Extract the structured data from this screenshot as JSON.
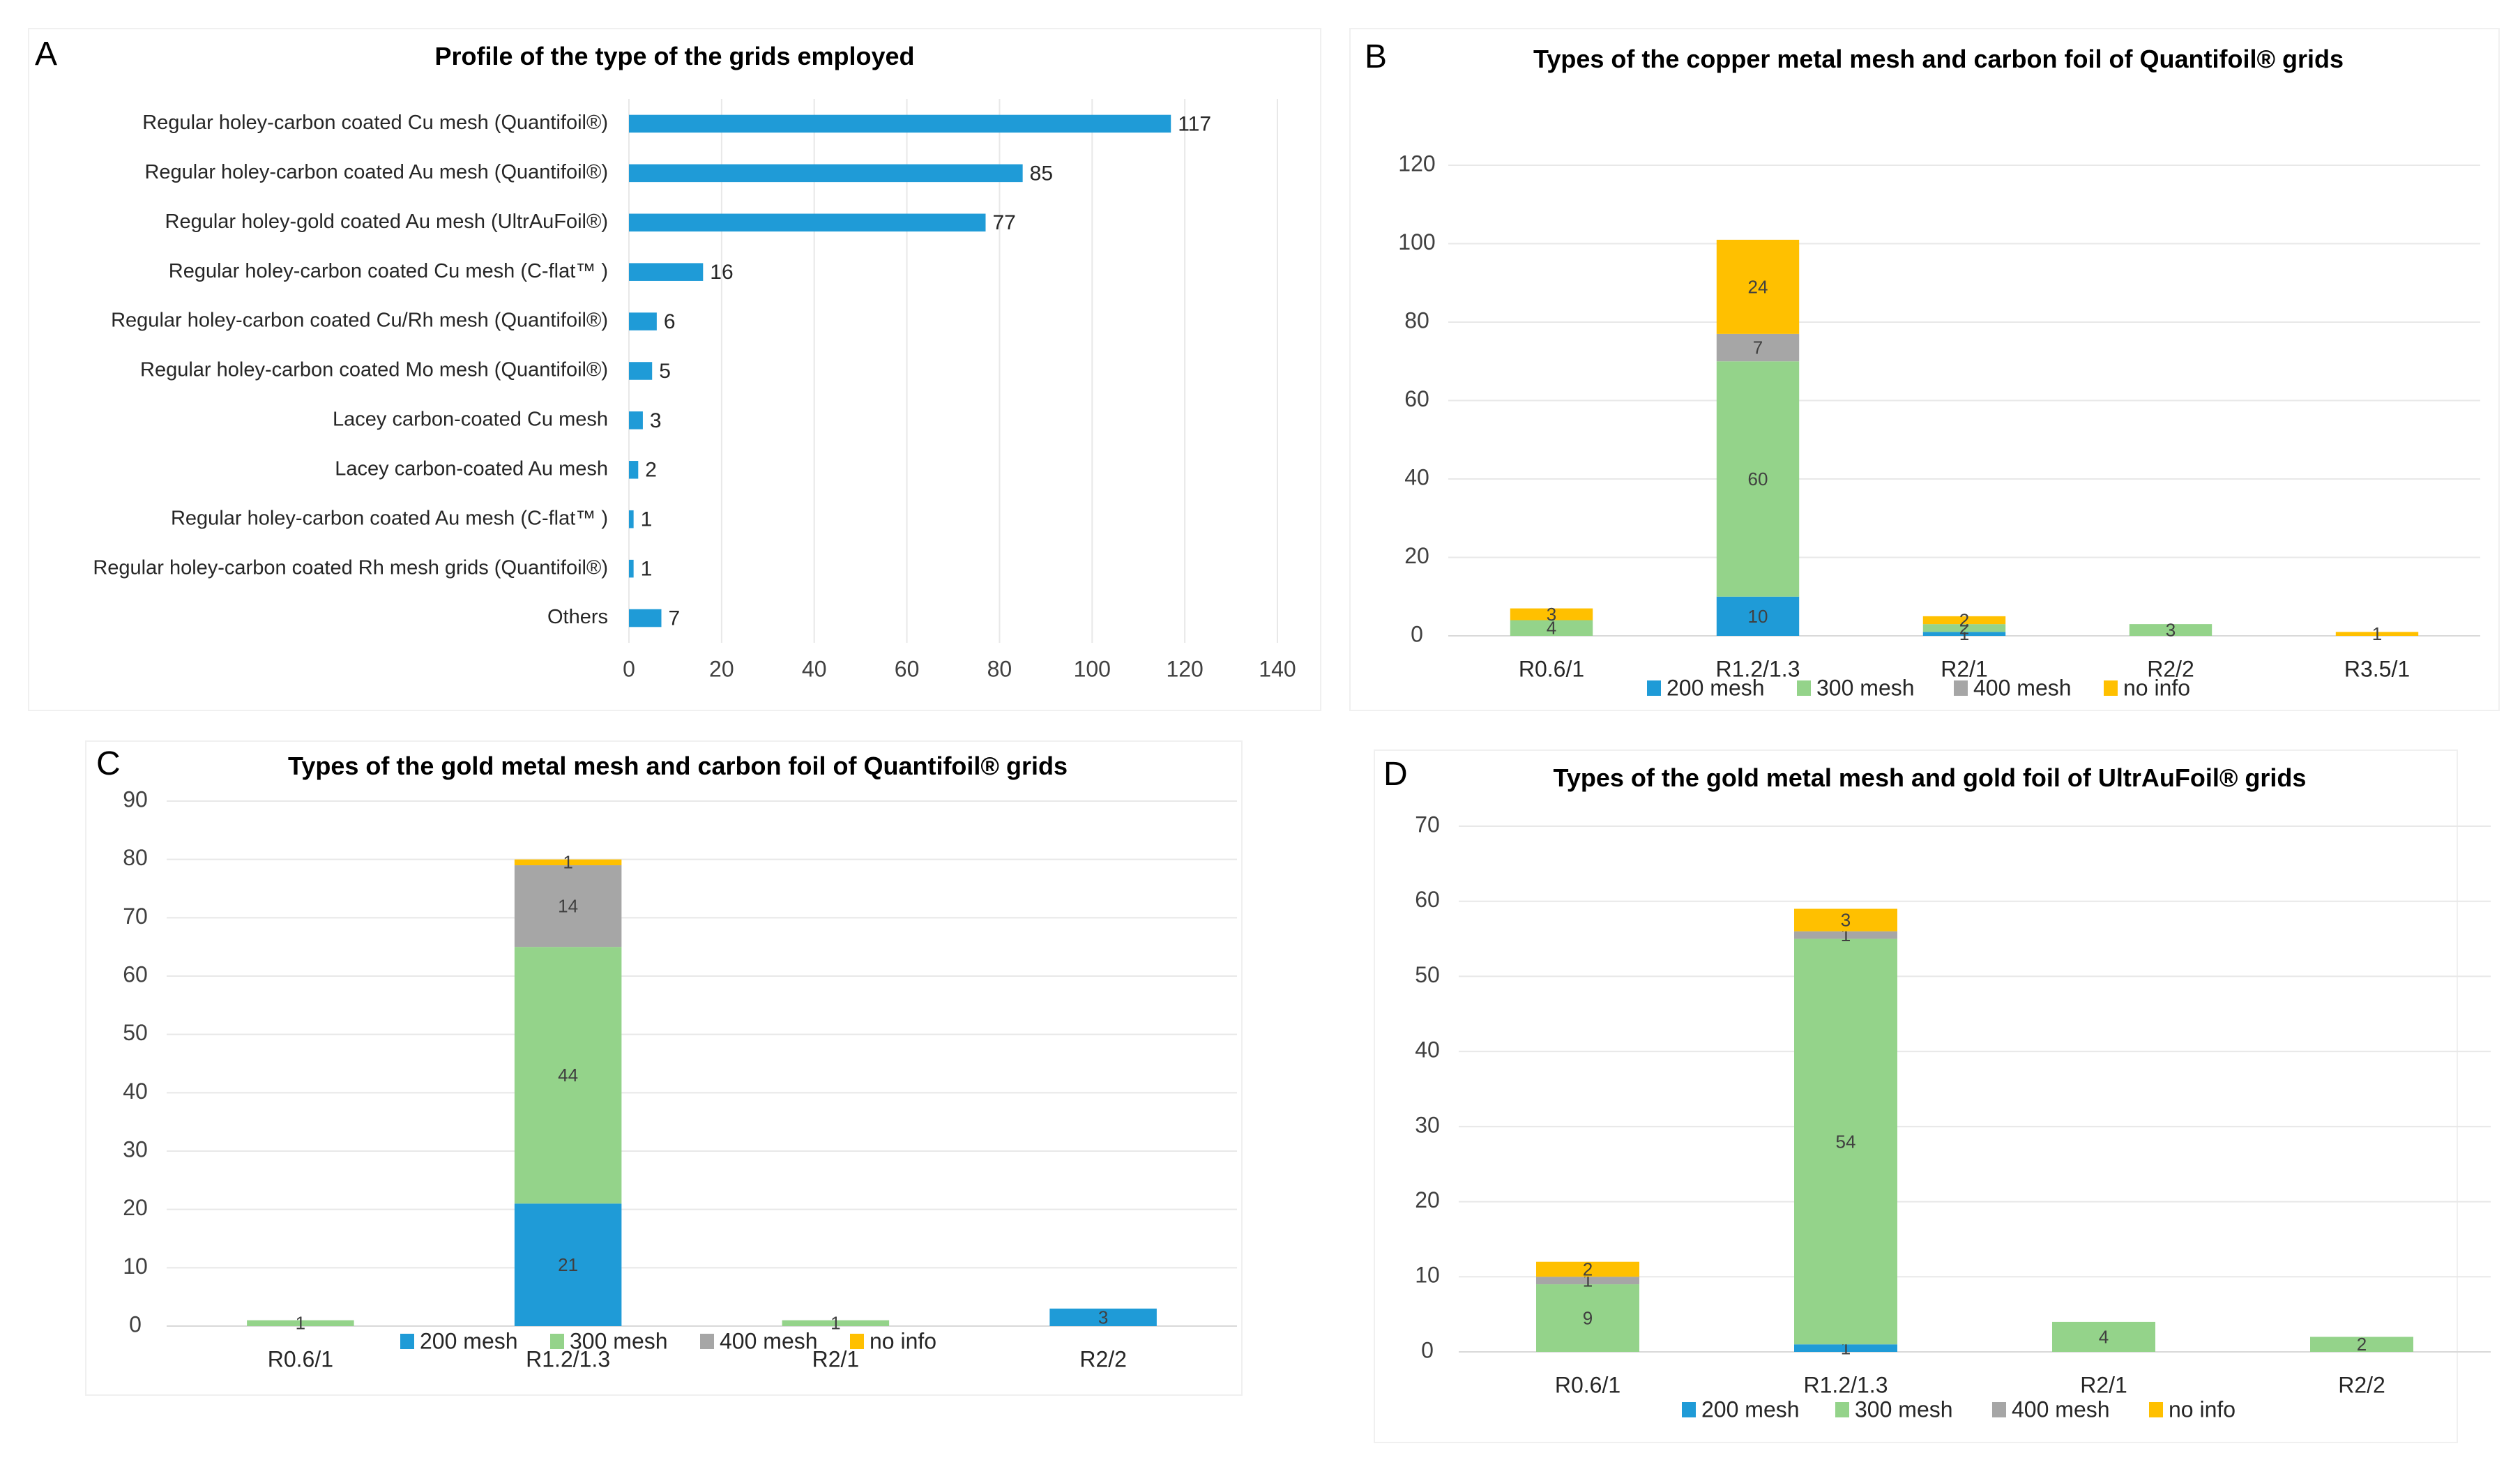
{
  "colors": {
    "bar_blue": "#1f9bd7",
    "mesh_200": "#1f9bd7",
    "mesh_300": "#94d38a",
    "mesh_400": "#a6a6a6",
    "no_info": "#ffc000"
  },
  "chart_data": [
    {
      "id": "A",
      "letter": "A",
      "type": "bar",
      "orientation": "horizontal",
      "title": "Profile of the type of the grids employed",
      "categories": [
        "Regular holey-carbon coated Cu mesh (Quantifoil®)",
        "Regular holey-carbon coated Au mesh (Quantifoil®)",
        "Regular holey-gold coated Au mesh (UltrAuFoil®)",
        "Regular holey-carbon coated Cu mesh (C-flat™ )",
        "Regular holey-carbon coated Cu/Rh mesh (Quantifoil®)",
        "Regular holey-carbon coated Mo mesh (Quantifoil®)",
        "Lacey carbon-coated Cu mesh",
        "Lacey carbon-coated Au mesh",
        "Regular holey-carbon coated Au mesh (C-flat™ )",
        "Regular holey-carbon coated Rh mesh grids (Quantifoil®)",
        "Others"
      ],
      "values": [
        117,
        85,
        77,
        16,
        6,
        5,
        3,
        2,
        1,
        1,
        7
      ],
      "xlabel": "",
      "ylabel": "",
      "xlim": [
        0,
        140
      ],
      "xticks": [
        0,
        20,
        40,
        60,
        80,
        100,
        120,
        140
      ],
      "grid": true,
      "data_labels": true
    },
    {
      "id": "B",
      "letter": "B",
      "type": "bar",
      "stacked": true,
      "title": "Types of the copper metal mesh and carbon foil of Quantifoil® grids",
      "categories": [
        "R0.6/1",
        "R1.2/1.3",
        "R2/1",
        "R2/2",
        "R3.5/1"
      ],
      "series": [
        {
          "name": "200 mesh",
          "values": [
            0,
            10,
            1,
            0,
            0
          ]
        },
        {
          "name": "300 mesh",
          "values": [
            4,
            60,
            2,
            3,
            0
          ]
        },
        {
          "name": "400 mesh",
          "values": [
            0,
            7,
            0,
            0,
            0
          ]
        },
        {
          "name": "no info",
          "values": [
            3,
            24,
            2,
            0,
            1
          ]
        }
      ],
      "ylim": [
        0,
        120
      ],
      "yticks": [
        0,
        20,
        40,
        60,
        80,
        100,
        120
      ],
      "xlabel": "",
      "ylabel": "",
      "grid": true,
      "legend": "bottom"
    },
    {
      "id": "C",
      "letter": "C",
      "type": "bar",
      "stacked": true,
      "title": "Types of the gold metal mesh and carbon foil of Quantifoil® grids",
      "categories": [
        "R0.6/1",
        "R1.2/1.3",
        "R2/1",
        "R2/2"
      ],
      "series": [
        {
          "name": "200 mesh",
          "values": [
            0,
            21,
            0,
            3
          ]
        },
        {
          "name": "300 mesh",
          "values": [
            1,
            44,
            1,
            0
          ]
        },
        {
          "name": "400 mesh",
          "values": [
            0,
            14,
            0,
            0
          ]
        },
        {
          "name": "no info",
          "values": [
            0,
            1,
            0,
            0
          ]
        }
      ],
      "ylim": [
        0,
        90
      ],
      "yticks": [
        0,
        10,
        20,
        30,
        40,
        50,
        60,
        70,
        80,
        90
      ],
      "xlabel": "",
      "ylabel": "",
      "grid": true,
      "legend": "bottom"
    },
    {
      "id": "D",
      "letter": "D",
      "type": "bar",
      "stacked": true,
      "title": "Types of the gold metal mesh and gold foil of UltrAuFoil® grids",
      "categories": [
        "R0.6/1",
        "R1.2/1.3",
        "R2/1",
        "R2/2"
      ],
      "series": [
        {
          "name": "200 mesh",
          "values": [
            0,
            1,
            0,
            0
          ]
        },
        {
          "name": "300 mesh",
          "values": [
            9,
            54,
            4,
            2
          ]
        },
        {
          "name": "400 mesh",
          "values": [
            1,
            1,
            0,
            0
          ]
        },
        {
          "name": "no info",
          "values": [
            2,
            3,
            0,
            0
          ]
        }
      ],
      "ylim": [
        0,
        70
      ],
      "yticks": [
        0,
        10,
        20,
        30,
        40,
        50,
        60,
        70
      ],
      "xlabel": "",
      "ylabel": "",
      "grid": true,
      "legend": "bottom"
    }
  ]
}
